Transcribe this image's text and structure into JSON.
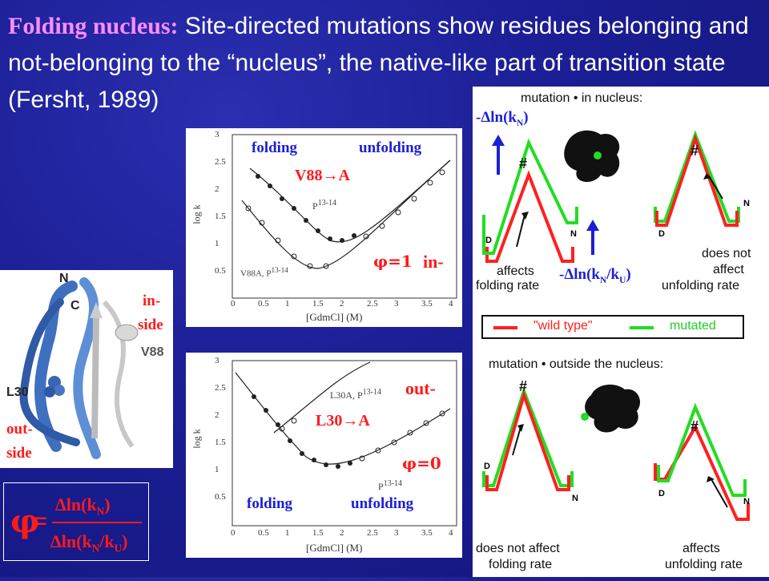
{
  "title": {
    "lead": "Folding nucleus:",
    "text": " Site-directed mutations show residues belonging and not-belonging to the “nucleus”, the native-like part of transition state (Fersht, 1989)"
  },
  "protein": {
    "label_N": "N",
    "label_C": "C",
    "label_V88": "V88",
    "label_L30": "L30",
    "in_side_1": "in-",
    "in_side_2": "side",
    "out_side_1": "out-",
    "out_side_2": "side"
  },
  "formula": {
    "phi": "φ",
    "equals": "=",
    "numerator": "Δln(k",
    "num_sub": "N",
    "denominator": "Δln(k",
    "den_sub1": "N",
    "den_mid": "/k",
    "den_sub2": "U"
  },
  "plot_top": {
    "folding": "folding",
    "unfolding": "unfolding",
    "mutation": "V88→A",
    "phi": "φ=1",
    "side": "in-",
    "inner_label": "P",
    "inner_label_sup": "13-14",
    "corner_label": "V88A, P",
    "corner_label_sup": "13-14",
    "xlabel": "[GdmCl] (M)",
    "ylabel": "log k",
    "xticks": [
      "0",
      "0.5",
      "1",
      "1.5",
      "2",
      "2.5",
      "3",
      "3.5",
      "4"
    ],
    "yticks": [
      "3",
      "2.5",
      "2",
      "1.5",
      "1",
      "0.5"
    ]
  },
  "plot_bottom": {
    "folding": "folding",
    "unfolding": "unfolding",
    "mutation": "L30→A",
    "phi": "φ=0",
    "side": "out-",
    "inner_label": "L30A, P",
    "inner_label_sup": "13-14",
    "inner_label2": "P",
    "inner_label2_sup": "13-14",
    "xlabel": "[GdmCl] (M)",
    "ylabel": "log k",
    "xticks": [
      "0",
      "0.5",
      "1",
      "1.5",
      "2",
      "2.5",
      "3",
      "3.5",
      "4"
    ],
    "yticks": [
      "3",
      "2.5",
      "2",
      "1.5",
      "1",
      "0.5"
    ]
  },
  "diagram": {
    "top_heading": "mutation • in nucleus:",
    "hash": "#",
    "D": "D",
    "N": "N",
    "affects_1": "affects",
    "affects_2": "folding rate",
    "not_affect_1": "does not",
    "not_affect_2": "affect",
    "not_affect_3": "unfolding rate",
    "arrow_kN": "-Δln(k",
    "arrow_kN_sub": "N",
    "arrow_kNkU": "-Δln(k",
    "arrow_kNkU_sub1": "N",
    "arrow_kNkU_mid": "/k",
    "arrow_kNkU_sub2": "U",
    "legend_wild": "\"wild type\"",
    "legend_mut": "mutated",
    "bottom_heading": "mutation • outside the nucleus:",
    "bottom_left_1": "does not affect",
    "bottom_left_2": "folding rate",
    "bottom_right_1": "affects",
    "bottom_right_2": "unfolding rate"
  }
}
